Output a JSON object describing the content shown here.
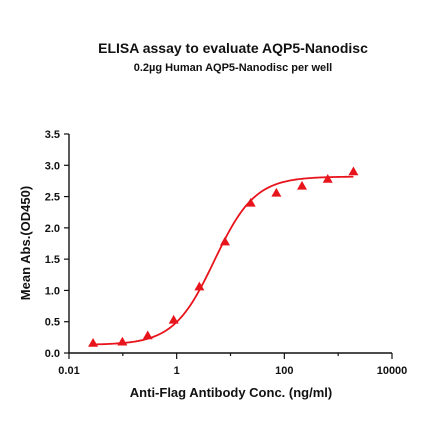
{
  "chart_data": {
    "type": "scatter",
    "title": "ELISA assay to evaluate AQP5-Nanodisc",
    "subtitle": "0.2µg Human AQP5-Nanodisc per well",
    "xlabel": "Anti-Flag Antibody Conc. (ng/ml)",
    "ylabel": "Mean Abs.(OD450)",
    "x_scale": "log",
    "xlim": [
      0.01,
      10000
    ],
    "ylim": [
      0,
      3.5
    ],
    "x_ticks": [
      0.01,
      1,
      100,
      10000
    ],
    "x_tick_labels": [
      "0.01",
      "1",
      "100",
      "10000"
    ],
    "y_ticks": [
      0,
      0.5,
      1.0,
      1.5,
      2.0,
      2.5,
      3.0,
      3.5
    ],
    "y_tick_labels": [
      "0.0",
      "0.5",
      "1.0",
      "1.5",
      "2.0",
      "2.5",
      "3.0",
      "3.5"
    ],
    "grid": false,
    "series": [
      {
        "marker": "triangle",
        "color": "#e8141c",
        "x": [
          0.028,
          0.098,
          0.29,
          0.88,
          2.64,
          7.9,
          23.7,
          71.1,
          213,
          640,
          1920
        ],
        "y": [
          0.16,
          0.18,
          0.28,
          0.53,
          1.06,
          1.78,
          2.4,
          2.56,
          2.67,
          2.78,
          2.9
        ]
      }
    ],
    "fit_curve": {
      "color": "#e8141c",
      "bottom": 0.13,
      "top": 2.82,
      "ec50": 5.0,
      "hill": 1.15
    }
  }
}
